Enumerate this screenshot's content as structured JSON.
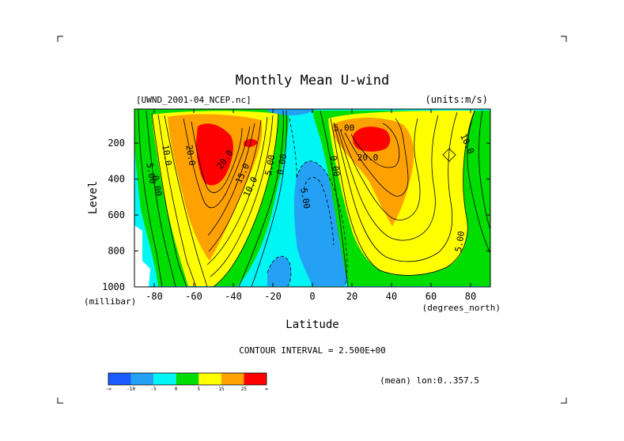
{
  "chart_data": {
    "type": "heatmap",
    "title": "Monthly Mean U-wind",
    "dataset_label": "[UWND_2001-04_NCEP.nc]",
    "units_label": "(units:m/s)",
    "xlabel": "Latitude",
    "x_units": "(degrees_north)",
    "ylabel": "Level",
    "y_units": "(millibar)",
    "xlim": [
      -90,
      90
    ],
    "ylim": [
      1000,
      10
    ],
    "x_ticks": [
      -80,
      -60,
      -40,
      -20,
      0,
      20,
      40,
      60,
      80
    ],
    "y_ticks": [
      200,
      400,
      600,
      800,
      1000
    ],
    "contour_interval_text": "CONTOUR INTERVAL = 2.500E+00",
    "mean_note": "(mean) lon:0..357.5",
    "contour_labels": [
      {
        "text": "5.00",
        "lat": -83,
        "level": 370,
        "angle": 80
      },
      {
        "text": "0.00",
        "lat": -80,
        "level": 440,
        "angle": 80
      },
      {
        "text": "10.0",
        "lat": -75,
        "level": 270,
        "angle": 80
      },
      {
        "text": "20.0",
        "lat": -63,
        "level": 270,
        "angle": 80
      },
      {
        "text": "20.0",
        "lat": -43,
        "level": 300,
        "angle": -55
      },
      {
        "text": "15.0",
        "lat": -34,
        "level": 375,
        "angle": -65
      },
      {
        "text": "10.0",
        "lat": -30,
        "level": 450,
        "angle": -65
      },
      {
        "text": "5.00",
        "lat": -20,
        "level": 325,
        "angle": -80
      },
      {
        "text": "0.00",
        "lat": -14,
        "level": 320,
        "angle": -80
      },
      {
        "text": "5.00",
        "lat": -5,
        "level": 510,
        "angle": 80
      },
      {
        "text": "0.00",
        "lat": 10,
        "level": 330,
        "angle": 80
      },
      {
        "text": "5.00",
        "lat": 16,
        "level": 130,
        "angle": 0
      },
      {
        "text": "20.0",
        "lat": 28,
        "level": 295,
        "angle": 0
      },
      {
        "text": "10.0",
        "lat": 77,
        "level": 210,
        "angle": 65
      },
      {
        "text": "5.00",
        "lat": 76,
        "level": 750,
        "angle": -80
      }
    ],
    "colorbar": {
      "colors": [
        "#1a5cff",
        "#24a0f4",
        "#00f5f5",
        "#00dd00",
        "#ffff00",
        "#ffa100",
        "#ff0000"
      ],
      "labels": [
        "-∞",
        "-10",
        "-5",
        "0",
        "5",
        "15",
        "25",
        "∞"
      ]
    },
    "level_colors": {
      "neg10": "#1a5cff",
      "neg5": "#24a0f4",
      "zero": "#00f5f5",
      "pos0": "#00dd00",
      "pos5": "#ffff00",
      "pos15": "#ffa100",
      "pos25": "#ff0000"
    }
  }
}
